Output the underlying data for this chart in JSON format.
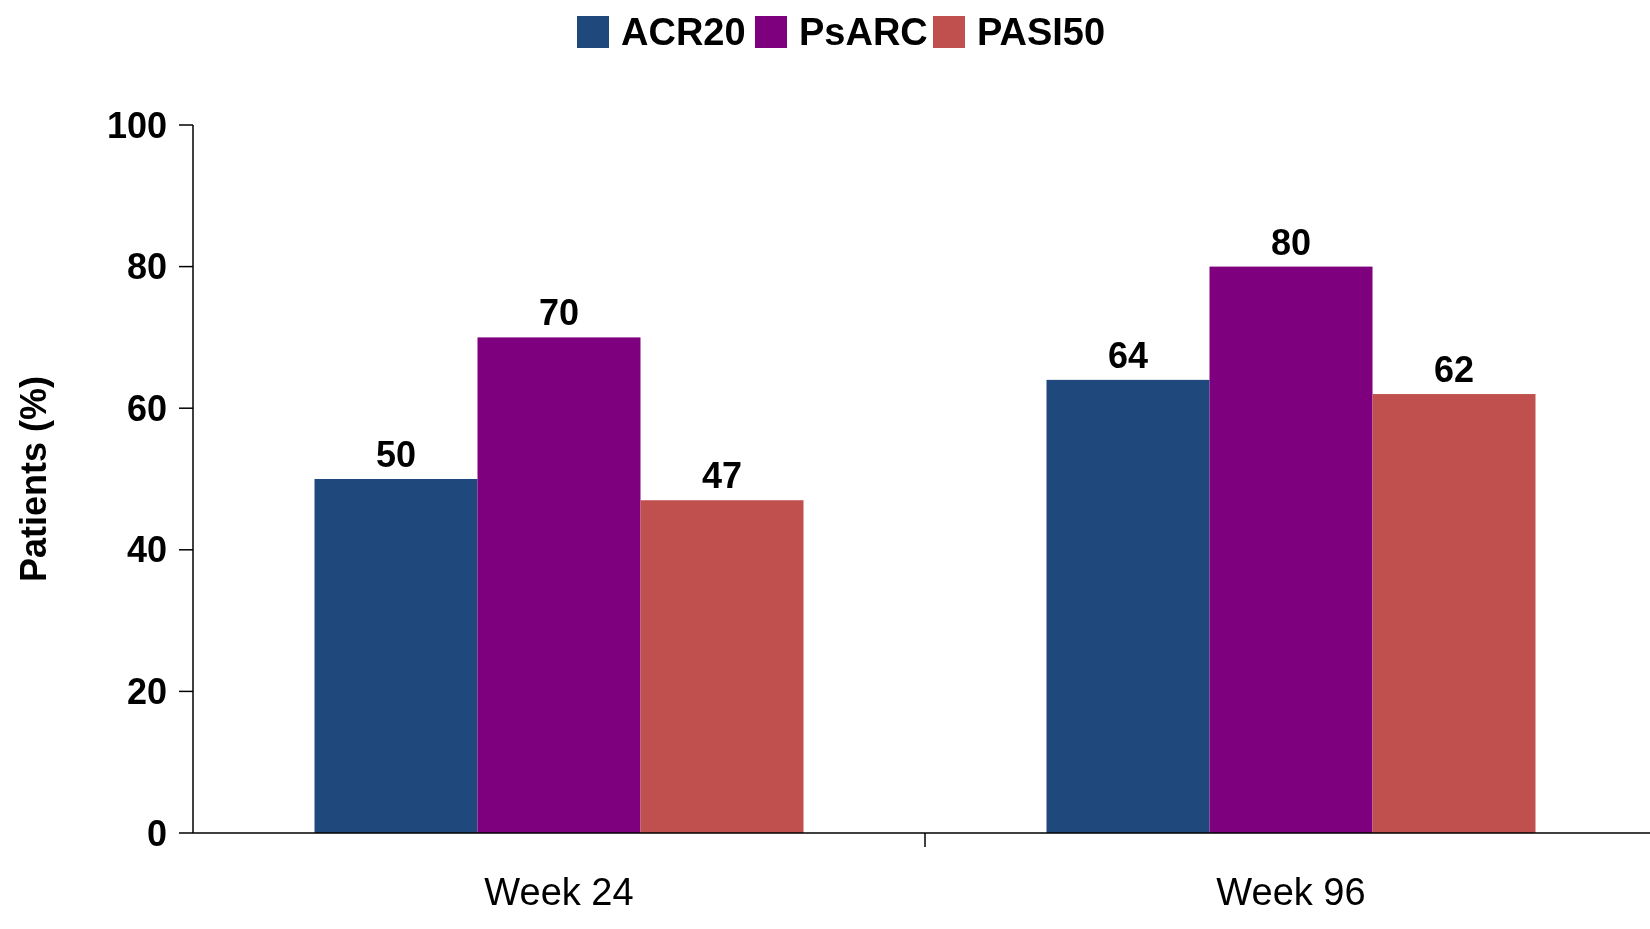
{
  "chart_data": {
    "type": "bar",
    "categories": [
      "Week 24",
      "Week 96"
    ],
    "ylabel": "Patients (%)",
    "ylim": [
      0,
      100
    ],
    "yticks": [
      0,
      20,
      40,
      60,
      80,
      100
    ],
    "legend": "top",
    "data_labels": true,
    "grid": false,
    "series": [
      {
        "name": "ACR20",
        "color": "#1f497d",
        "values": [
          50,
          64
        ]
      },
      {
        "name": "PsARC",
        "color": "#7f007f",
        "values": [
          70,
          80
        ]
      },
      {
        "name": "PASI50",
        "color": "#c0504d",
        "values": [
          47,
          62
        ]
      }
    ]
  }
}
